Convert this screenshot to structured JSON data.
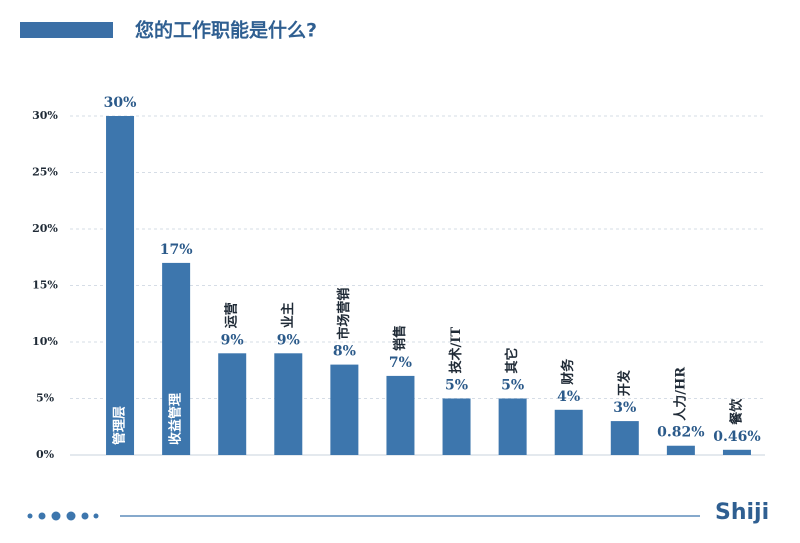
{
  "chart_data": {
    "type": "bar",
    "title": "您的工作职能是什么?",
    "categories": [
      "管理层",
      "收益管理",
      "运营",
      "业主",
      "市场营销",
      "销售",
      "技术/IT",
      "其它",
      "财务",
      "开发",
      "人力/HR",
      "餐饮"
    ],
    "values": [
      30,
      17,
      9,
      9,
      8,
      7,
      5,
      5,
      4,
      3,
      0.82,
      0.46
    ],
    "value_labels": [
      "30%",
      "17%",
      "9%",
      "9%",
      "8%",
      "7%",
      "5%",
      "5%",
      "4%",
      "3%",
      "0.82%",
      "0.46%"
    ],
    "color": "#3d76ad",
    "ylim": [
      0,
      30
    ],
    "yticks": [
      {
        "value": 0,
        "label": "0%"
      },
      {
        "value": 5,
        "label": "5%"
      },
      {
        "value": 10,
        "label": "10%"
      },
      {
        "value": 15,
        "label": "15%"
      },
      {
        "value": 20,
        "label": "20%"
      },
      {
        "value": 25,
        "label": "25%"
      },
      {
        "value": 30,
        "label": "30%"
      }
    ],
    "grid": true,
    "brand": "Shiji"
  }
}
